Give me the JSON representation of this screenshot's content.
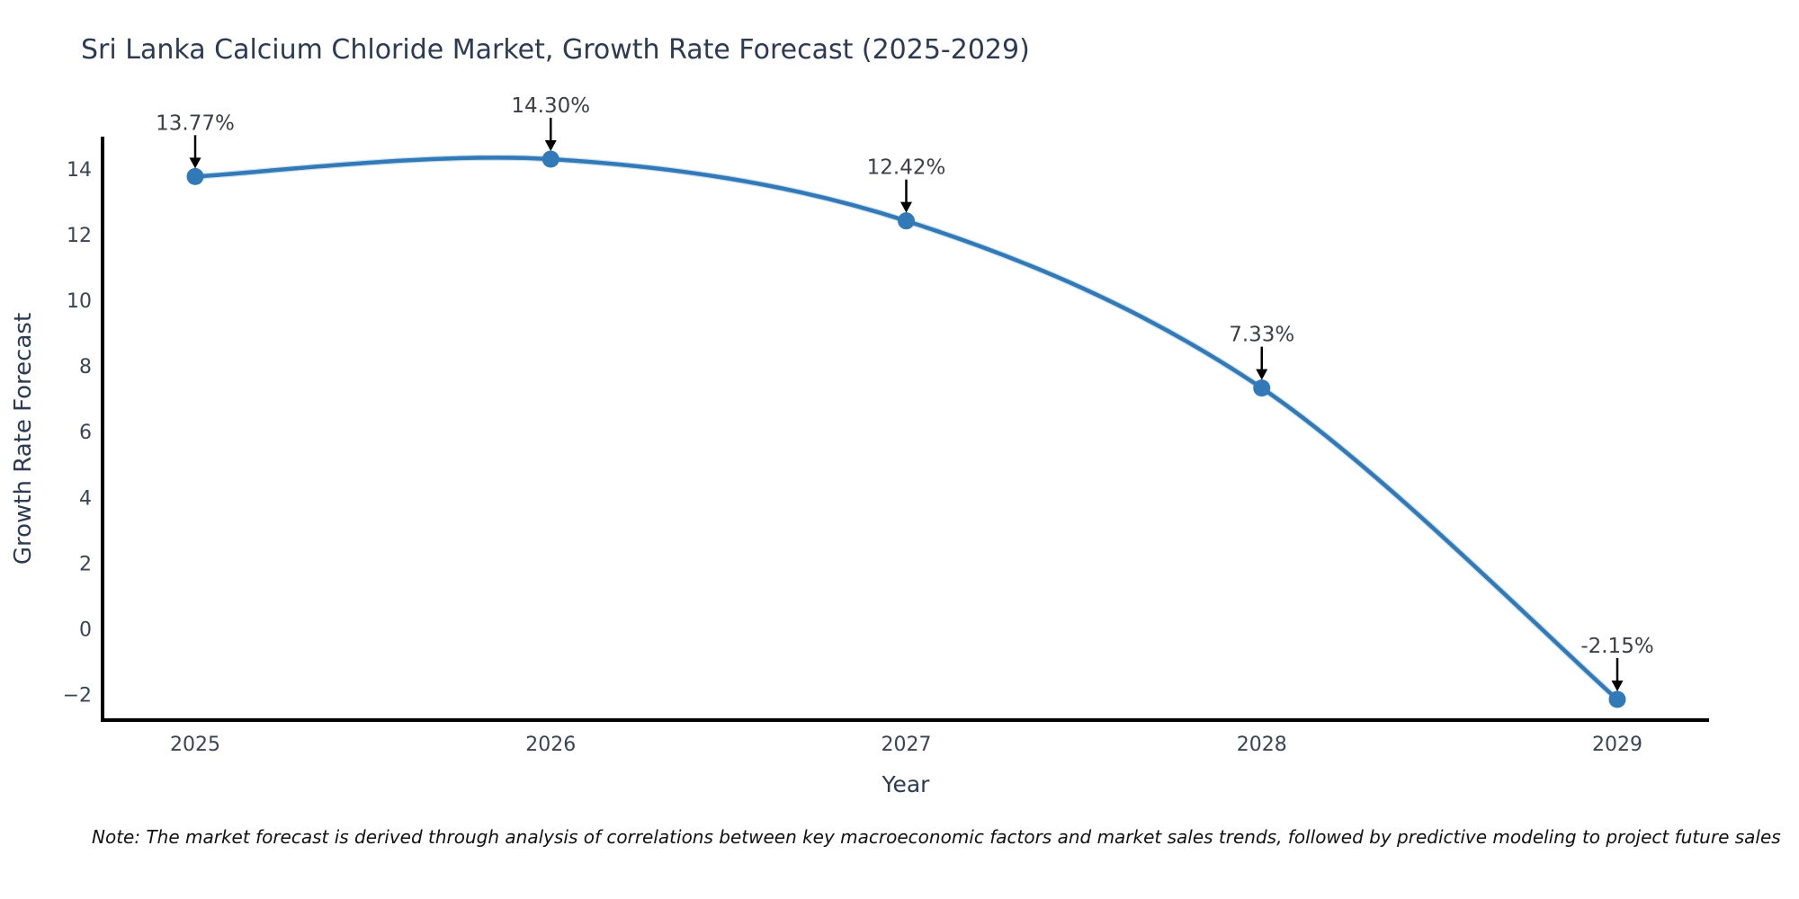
{
  "title": "Sri Lanka Calcium Chloride Market, Growth Rate Forecast (2025-2029)",
  "note": "Note: The market forecast is derived through analysis of correlations between key macroeconomic factors and market sales trends, followed by predictive modeling to project future sales",
  "chart_data": {
    "type": "line",
    "title": "Sri Lanka Calcium Chloride Market, Growth Rate Forecast (2025-2029)",
    "xlabel": "Year",
    "ylabel": "Growth Rate Forecast",
    "categories": [
      "2025",
      "2026",
      "2027",
      "2028",
      "2029"
    ],
    "values": [
      13.77,
      14.3,
      12.42,
      7.33,
      -2.15
    ],
    "point_labels": [
      "13.77%",
      "14.30%",
      "12.42%",
      "7.33%",
      "-2.15%"
    ],
    "yticks": [
      14,
      12,
      10,
      8,
      6,
      4,
      2,
      0,
      -2
    ],
    "ytick_labels": [
      "14",
      "12",
      "10",
      "8",
      "6",
      "4",
      "2",
      "0",
      "−2"
    ],
    "ylim": [
      -2.78,
      14.82
    ],
    "grid": false,
    "legend": null,
    "marker": "circle",
    "annotation_arrows": true,
    "colors": {
      "line": "#3279b7",
      "line_halo": "#a5c8e3",
      "marker": "#3279b7",
      "axis": "#000000",
      "title_text": "#2c3a52",
      "axis_label_text": "#2c3a52",
      "tick_text": "#3a4454",
      "annotation_text": "#3c4046",
      "arrow": "#000000",
      "note_text": "#111111",
      "background": "#ffffff"
    }
  }
}
